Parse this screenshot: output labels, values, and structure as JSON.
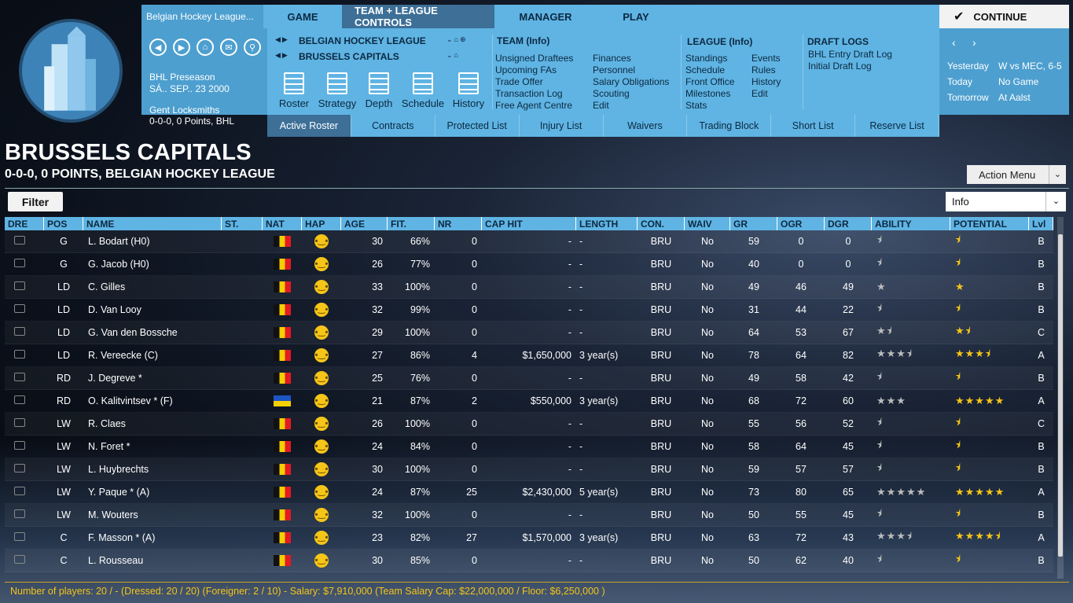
{
  "topbar": {
    "league": "Belgian Hockey League...",
    "tabs": [
      "GAME",
      "TEAM + LEAGUE CONTROLS",
      "MANAGER",
      "PLAY"
    ],
    "continue": "CONTINUE"
  },
  "nav": {
    "season": "BHL Preseason",
    "date": "SÁ.. SEP.. 23 2000",
    "opponent": "Gent Locksmiths",
    "record": "0-0-0, 0 Points, BHL"
  },
  "mid": {
    "league": "BELGIAN HOCKEY LEAGUE",
    "team": "BRUSSELS CAPITALS",
    "tools": [
      "Roster",
      "Strategy",
      "Depth",
      "Schedule",
      "History"
    ],
    "team_info": {
      "head": "TEAM (Info)",
      "col1": [
        "Unsigned Draftees",
        "Upcoming FAs",
        "Trade Offer",
        "Transaction Log",
        "Free Agent Centre"
      ],
      "col2": [
        "Finances",
        "Personnel",
        "Salary Obligations",
        "Scouting",
        "Edit"
      ]
    },
    "league_info": {
      "head": "LEAGUE (Info)",
      "col1": [
        "Standings",
        "Schedule",
        "Front Office",
        "Milestones",
        "Stats"
      ],
      "col2": [
        "Events",
        "Rules",
        "History",
        "Edit"
      ]
    },
    "draft": {
      "head": "DRAFT LOGS",
      "items": [
        "BHL Entry Draft Log",
        "Initial Draft Log"
      ]
    }
  },
  "right": {
    "rows": [
      [
        "Yesterday",
        "W vs MEC, 6-5"
      ],
      [
        "Today",
        "No Game"
      ],
      [
        "Tomorrow",
        "At Aalst"
      ]
    ]
  },
  "subtabs": [
    "Active Roster",
    "Contracts",
    "Protected List",
    "Injury List",
    "Waivers",
    "Trading Block",
    "Short List",
    "Reserve List"
  ],
  "page": {
    "title": "BRUSSELS CAPITALS",
    "subtitle": "0-0-0, 0 POINTS, BELGIAN HOCKEY LEAGUE",
    "action": "Action Menu",
    "filter": "Filter",
    "info": "Info"
  },
  "columns": [
    "DRE",
    "POS",
    "NAME",
    "ST.",
    "NAT",
    "HAP",
    "AGE",
    "FIT.",
    "NR",
    "CAP HIT",
    "LENGTH",
    "CON.",
    "WAIV",
    "GR",
    "OGR",
    "DGR",
    "ABILITY",
    "POTENTIAL",
    "Lvl"
  ],
  "rows": [
    {
      "pos": "G",
      "name": "L. Bodart (H0)",
      "nat": "BE",
      "age": "30",
      "fit": "66%",
      "nr": "0",
      "cap": "-",
      "len": "-",
      "con": "BRU",
      "waiv": "No",
      "gr": "59",
      "ogr": "0",
      "dgr": "0",
      "ab": 0.5,
      "pot": 0.5,
      "lvl": "B"
    },
    {
      "pos": "G",
      "name": "G. Jacob (H0)",
      "nat": "BE",
      "age": "26",
      "fit": "77%",
      "nr": "0",
      "cap": "-",
      "len": "-",
      "con": "BRU",
      "waiv": "No",
      "gr": "40",
      "ogr": "0",
      "dgr": "0",
      "ab": 0.5,
      "pot": 0.5,
      "lvl": "B"
    },
    {
      "pos": "LD",
      "name": "C. Gilles",
      "nat": "BE",
      "age": "33",
      "fit": "100%",
      "nr": "0",
      "cap": "-",
      "len": "-",
      "con": "BRU",
      "waiv": "No",
      "gr": "49",
      "ogr": "46",
      "dgr": "49",
      "ab": 1,
      "pot": 1,
      "lvl": "B"
    },
    {
      "pos": "LD",
      "name": "D. Van Looy",
      "nat": "BE",
      "age": "32",
      "fit": "99%",
      "nr": "0",
      "cap": "-",
      "len": "-",
      "con": "BRU",
      "waiv": "No",
      "gr": "31",
      "ogr": "44",
      "dgr": "22",
      "ab": 0.5,
      "pot": 0.5,
      "lvl": "B"
    },
    {
      "pos": "LD",
      "name": "G. Van den Bossche",
      "nat": "BE",
      "age": "29",
      "fit": "100%",
      "nr": "0",
      "cap": "-",
      "len": "-",
      "con": "BRU",
      "waiv": "No",
      "gr": "64",
      "ogr": "53",
      "dgr": "67",
      "ab": 1.5,
      "pot": 1.5,
      "lvl": "C"
    },
    {
      "pos": "LD",
      "name": "R. Vereecke (C)",
      "nat": "BE",
      "age": "27",
      "fit": "86%",
      "nr": "4",
      "cap": "$1,650,000",
      "len": "3 year(s)",
      "con": "BRU",
      "waiv": "No",
      "gr": "78",
      "ogr": "64",
      "dgr": "82",
      "ab": 3.5,
      "pot": 3.5,
      "lvl": "A"
    },
    {
      "pos": "RD",
      "name": "J. Degreve *",
      "nat": "BE",
      "age": "25",
      "fit": "76%",
      "nr": "0",
      "cap": "-",
      "len": "-",
      "con": "BRU",
      "waiv": "No",
      "gr": "49",
      "ogr": "58",
      "dgr": "42",
      "ab": 0.5,
      "pot": 0.5,
      "lvl": "B"
    },
    {
      "pos": "RD",
      "name": "O. Kalitvintsev *  (F)",
      "nat": "UA",
      "age": "21",
      "fit": "87%",
      "nr": "2",
      "cap": "$550,000",
      "len": "3 year(s)",
      "con": "BRU",
      "waiv": "No",
      "gr": "68",
      "ogr": "72",
      "dgr": "60",
      "ab": 3,
      "pot": 5,
      "lvl": "A"
    },
    {
      "pos": "LW",
      "name": "R. Claes",
      "nat": "BE",
      "age": "26",
      "fit": "100%",
      "nr": "0",
      "cap": "-",
      "len": "-",
      "con": "BRU",
      "waiv": "No",
      "gr": "55",
      "ogr": "56",
      "dgr": "52",
      "ab": 0.5,
      "pot": 0.5,
      "lvl": "C"
    },
    {
      "pos": "LW",
      "name": "N. Foret *",
      "nat": "BE",
      "age": "24",
      "fit": "84%",
      "nr": "0",
      "cap": "-",
      "len": "-",
      "con": "BRU",
      "waiv": "No",
      "gr": "58",
      "ogr": "64",
      "dgr": "45",
      "ab": 0.5,
      "pot": 0.5,
      "lvl": "B"
    },
    {
      "pos": "LW",
      "name": "L. Huybrechts",
      "nat": "BE",
      "age": "30",
      "fit": "100%",
      "nr": "0",
      "cap": "-",
      "len": "-",
      "con": "BRU",
      "waiv": "No",
      "gr": "59",
      "ogr": "57",
      "dgr": "57",
      "ab": 0.5,
      "pot": 0.5,
      "lvl": "B"
    },
    {
      "pos": "LW",
      "name": "Y. Paque *  (A)",
      "nat": "BE",
      "age": "24",
      "fit": "87%",
      "nr": "25",
      "cap": "$2,430,000",
      "len": "5 year(s)",
      "con": "BRU",
      "waiv": "No",
      "gr": "73",
      "ogr": "80",
      "dgr": "65",
      "ab": 5,
      "pot": 5,
      "lvl": "A"
    },
    {
      "pos": "LW",
      "name": "M. Wouters",
      "nat": "BE",
      "age": "32",
      "fit": "100%",
      "nr": "0",
      "cap": "-",
      "len": "-",
      "con": "BRU",
      "waiv": "No",
      "gr": "50",
      "ogr": "55",
      "dgr": "45",
      "ab": 0.5,
      "pot": 0.5,
      "lvl": "B"
    },
    {
      "pos": "C",
      "name": "F. Masson *  (A)",
      "nat": "BE",
      "age": "23",
      "fit": "82%",
      "nr": "27",
      "cap": "$1,570,000",
      "len": "3 year(s)",
      "con": "BRU",
      "waiv": "No",
      "gr": "63",
      "ogr": "72",
      "dgr": "43",
      "ab": 3.5,
      "pot": 4.5,
      "lvl": "A"
    },
    {
      "pos": "C",
      "name": "L. Rousseau",
      "nat": "BE",
      "age": "30",
      "fit": "85%",
      "nr": "0",
      "cap": "-",
      "len": "-",
      "con": "BRU",
      "waiv": "No",
      "gr": "50",
      "ogr": "62",
      "dgr": "40",
      "ab": 0.5,
      "pot": 0.5,
      "lvl": "B"
    }
  ],
  "footer": "Number of players: 20 / - (Dressed: 20 / 20) (Foreigner: 2 / 10) -   Salary: $7,910,000  (Team Salary Cap: $22,000,000 / Floor: $6,250,000 )",
  "colors": {
    "accent": "#5fb4e3",
    "accent_dark": "#3d6f97",
    "gold": "#f5c518"
  }
}
